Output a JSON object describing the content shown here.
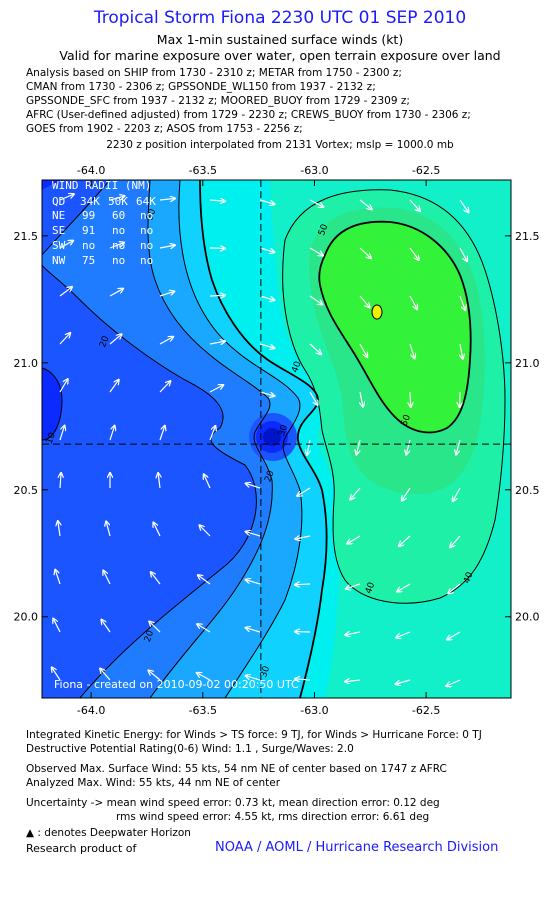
{
  "header": {
    "title": "Tropical Storm Fiona 2230 UTC 01 SEP 2010",
    "subtitle1": "Max 1-min sustained surface winds (kt)",
    "subtitle2": "Valid for marine exposure over water, open terrain exposure over land",
    "analysis_lines": [
      "Analysis based on SHIP from 1730 - 2310 z; METAR from 1750 - 2300 z;",
      "CMAN from 1730 - 2306 z; GPSSONDE_WL150 from 1937 - 2132 z;",
      "GPSSONDE_SFC from 1937 - 2132 z; MOORED_BUOY from 1729 - 2309 z;",
      "AFRC (User-defined adjusted) from 1729 - 2230 z; CREWS_BUOY from 1730 - 2306 z;",
      "GOES from 1902 - 2203 z; ASOS from 1753 - 2256 z;"
    ],
    "vortex_note": "2230 z position interpolated from 2131 Vortex; mslp = 1000.0 mb"
  },
  "wind_radii": {
    "title": "WIND RADII (NM)",
    "header": [
      "QD",
      "34K",
      "50K",
      "64K"
    ],
    "rows": [
      [
        "NE",
        "99",
        "60",
        "no"
      ],
      [
        "SE",
        "91",
        "no",
        "no"
      ],
      [
        "SW",
        "no",
        "no",
        "no"
      ],
      [
        "NW",
        "75",
        "no",
        "no"
      ]
    ]
  },
  "credit": "Fiona - created on 2010-09-02 00:20:50 UTC",
  "colors": {
    "title_blue": "#1a1aff",
    "bands": [
      "#0a2aff",
      "#1a55ff",
      "#1f7cff",
      "#1aa8ff",
      "#10d2ff",
      "#00f0f0",
      "#11f0c8",
      "#1ff0a8",
      "#29e68a",
      "#33f23a"
    ]
  },
  "chart_data": {
    "type": "contour",
    "x_ticks": [
      "-64.0",
      "-63.5",
      "-63.0",
      "-62.5"
    ],
    "y_ticks": [
      "21.5",
      "21.0",
      "20.5",
      "20.0"
    ],
    "xlim": [
      -64.22,
      -62.12
    ],
    "ylim": [
      19.68,
      21.72
    ],
    "center": {
      "lon": -63.24,
      "lat": 20.68
    },
    "max_wind_marker": {
      "lon": -62.72,
      "lat": 21.2
    },
    "contour_levels_kt": [
      10,
      20,
      30,
      40,
      50
    ],
    "contour_labels": [
      {
        "text": "10",
        "lon": -64.17,
        "lat": 20.7
      },
      {
        "text": "20",
        "lon": -63.93,
        "lat": 21.08
      },
      {
        "text": "20",
        "lon": -63.19,
        "lat": 20.55
      },
      {
        "text": "20",
        "lon": -63.73,
        "lat": 19.92
      },
      {
        "text": "30",
        "lon": -63.72,
        "lat": 21.58
      },
      {
        "text": "30",
        "lon": -63.13,
        "lat": 20.73
      },
      {
        "text": "30",
        "lon": -63.21,
        "lat": 19.78
      },
      {
        "text": "40",
        "lon": -63.07,
        "lat": 20.98
      },
      {
        "text": "40",
        "lon": -62.74,
        "lat": 20.11
      },
      {
        "text": "40",
        "lon": -62.3,
        "lat": 20.15
      },
      {
        "text": "50",
        "lon": -62.95,
        "lat": 21.52
      },
      {
        "text": "50",
        "lon": -62.58,
        "lat": 20.77
      }
    ]
  },
  "footer": {
    "ike": "Integrated Kinetic Energy:  for Winds > TS force: 9 TJ,  for Winds > Hurricane Force: 0 TJ",
    "dpr": "Destructive Potential Rating(0-6)   Wind: 1.1 , Surge/Waves: 2.0",
    "obs": "Observed Max. Surface Wind: 55 kts, 54 nm NE of center based on 1747 z AFRC",
    "analyzed": "Analyzed Max. Wind: 55 kts, 44 nm NE of center",
    "uncert1": "Uncertainty -> mean wind speed error: 0.73 kt,   mean direction error: 0.12 deg",
    "uncert2": "rms wind speed error: 4.55 kt,    rms direction error: 6.61 deg",
    "dwh": ": denotes Deepwater Horizon",
    "research": "Research product of",
    "org": "NOAA / AOML / Hurricane Research Division"
  }
}
